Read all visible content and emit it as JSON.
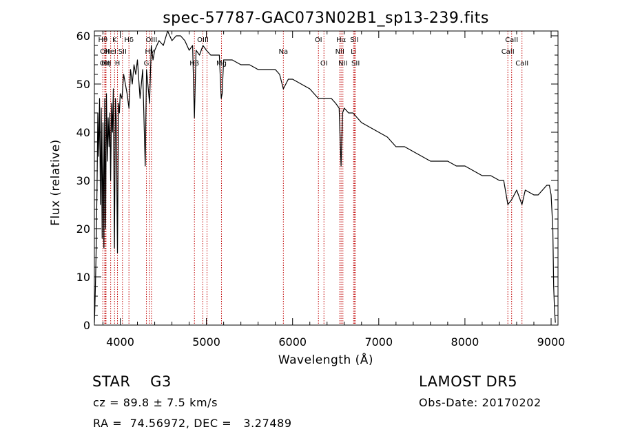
{
  "chart_data": {
    "type": "line",
    "title": "spec-57787-GAC073N02B1_sp13-239.fits",
    "xlabel": "Wavelength (Å)",
    "ylabel": "Flux (relative)",
    "xlim": [
      3700,
      9080
    ],
    "ylim": [
      0,
      61
    ],
    "x_ticks": [
      4000,
      5000,
      6000,
      7000,
      8000,
      9000
    ],
    "y_ticks": [
      0,
      10,
      20,
      30,
      40,
      50,
      60
    ],
    "grid": false,
    "series": [
      {
        "x": [
          3700,
          3705,
          3712,
          3720,
          3730,
          3740,
          3750,
          3760,
          3770,
          3780,
          3790,
          3800,
          3810,
          3820,
          3830,
          3840,
          3850,
          3860,
          3870,
          3880,
          3889,
          3900,
          3910,
          3920,
          3933,
          3945,
          3955,
          3968,
          3980,
          3990,
          4000,
          4020,
          4040,
          4060,
          4080,
          4101,
          4120,
          4140,
          4160,
          4180,
          4200,
          4230,
          4260,
          4290,
          4305,
          4320,
          4340,
          4360,
          4380,
          4400,
          4450,
          4500,
          4550,
          4600,
          4650,
          4700,
          4750,
          4800,
          4840,
          4861,
          4880,
          4920,
          4960,
          5000,
          5050,
          5100,
          5150,
          5172,
          5183,
          5200,
          5300,
          5400,
          5500,
          5600,
          5700,
          5800,
          5850,
          5893,
          5950,
          6000,
          6100,
          6200,
          6300,
          6400,
          6450,
          6500,
          6540,
          6563,
          6580,
          6600,
          6650,
          6700,
          6800,
          6900,
          7000,
          7100,
          7200,
          7300,
          7400,
          7500,
          7600,
          7700,
          7800,
          7900,
          8000,
          8100,
          8200,
          8300,
          8400,
          8450,
          8498,
          8542,
          8600,
          8662,
          8700,
          8800,
          8850,
          8900,
          8950,
          8980,
          9000,
          9020,
          9030,
          9040,
          9050
        ],
        "y": [
          0.5,
          3,
          8,
          15,
          28,
          44,
          35,
          47,
          25,
          45,
          18,
          42,
          16,
          47,
          20,
          48,
          34,
          43,
          37,
          44,
          30,
          46,
          40,
          49,
          16,
          47,
          42,
          15,
          46,
          44,
          48,
          47,
          52,
          50,
          48,
          45,
          53,
          50,
          54,
          52,
          55,
          47,
          53,
          33,
          53,
          50,
          46,
          58,
          55,
          57,
          59,
          58,
          61,
          59,
          60,
          60,
          59,
          57,
          58,
          43,
          57,
          56,
          58,
          57,
          56,
          56,
          56,
          47,
          48,
          55,
          55,
          54,
          54,
          53,
          53,
          53,
          52,
          49,
          51,
          51,
          50,
          49,
          47,
          47,
          47,
          46,
          45,
          33,
          44,
          45,
          44,
          44,
          42,
          41,
          40,
          39,
          37,
          37,
          36,
          35,
          34,
          34,
          34,
          33,
          33,
          32,
          31,
          31,
          30,
          30,
          25,
          26,
          28,
          25,
          28,
          27,
          27,
          28,
          29,
          29,
          27,
          20,
          8,
          3,
          0.5
        ]
      }
    ],
    "line_markers": [
      {
        "x": 3798,
        "label": "Hθ",
        "row": 1
      },
      {
        "x": 3820,
        "label": "OII",
        "row": 2
      },
      {
        "x": 3830,
        "label": "OIII",
        "row": 3
      },
      {
        "x": 3835,
        "label": "Hη",
        "row": 3
      },
      {
        "x": 3889,
        "label": "HeI",
        "row": 2
      },
      {
        "x": 3934,
        "label": "K",
        "row": 1
      },
      {
        "x": 3968,
        "label": "H",
        "row": 3
      },
      {
        "x": 4026,
        "label": "SII",
        "row": 2
      },
      {
        "x": 4101,
        "label": "Hδ",
        "row": 1
      },
      {
        "x": 4304,
        "label": "G",
        "row": 3
      },
      {
        "x": 4340,
        "label": "Hγ",
        "row": 2
      },
      {
        "x": 4363,
        "label": "OIII",
        "row": 1
      },
      {
        "x": 4861,
        "label": "Hβ",
        "row": 3
      },
      {
        "x": 4959,
        "label": "OIII",
        "row": 1
      },
      {
        "x": 5007,
        "label": "",
        "row": 0
      },
      {
        "x": 5175,
        "label": "Mg",
        "row": 3
      },
      {
        "x": 5893,
        "label": "Na",
        "row": 2
      },
      {
        "x": 6300,
        "label": "OI",
        "row": 1
      },
      {
        "x": 6364,
        "label": "OI",
        "row": 3
      },
      {
        "x": 6548,
        "label": "NII",
        "row": 2
      },
      {
        "x": 6563,
        "label": "Hα",
        "row": 1
      },
      {
        "x": 6584,
        "label": "NII",
        "row": 3
      },
      {
        "x": 6708,
        "label": "Li",
        "row": 2
      },
      {
        "x": 6717,
        "label": "SII",
        "row": 1
      },
      {
        "x": 6731,
        "label": "SII",
        "row": 3
      },
      {
        "x": 8498,
        "label": "CaII",
        "row": 2
      },
      {
        "x": 8542,
        "label": "CaII",
        "row": 1
      },
      {
        "x": 8662,
        "label": "CaII",
        "row": 3
      }
    ]
  },
  "info": {
    "class_line": "STAR    G3",
    "cz_line": "cz = 89.8 ± 7.5 km/s",
    "coord_line": "RA =  74.56972, DEC =   3.27489",
    "survey": "LAMOST DR5",
    "obs_date": "Obs-Date: 20170202"
  }
}
